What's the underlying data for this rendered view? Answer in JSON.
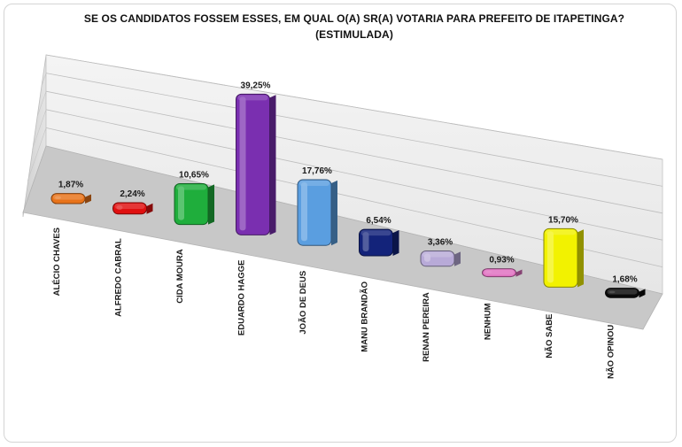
{
  "chart_data": {
    "type": "bar",
    "title": "SE OS CANDIDATOS FOSSEM ESSES, EM QUAL O(A) SR(A) VOTARIA PARA PREFEITO DE ITAPETINGA?",
    "subtitle": "(ESTIMULADA)",
    "categories": [
      "ALÉCIO CHAVES",
      "ALFREDO CABRAL",
      "CIDA MOURA",
      "EDUARDO HAGGE",
      "JOÃO DE DEUS",
      "MANU BRANDÃO",
      "RENAN PEREIRA",
      "NENHUM",
      "NÃO SABE",
      "NÃO OPINOU"
    ],
    "values": [
      1.87,
      2.24,
      10.65,
      39.25,
      17.76,
      6.54,
      3.36,
      0.93,
      15.7,
      1.68
    ],
    "value_labels": [
      "1,87%",
      "2,24%",
      "10,65%",
      "39,25%",
      "17,76%",
      "6,54%",
      "3,36%",
      "0,93%",
      "15,70%",
      "1,68%"
    ],
    "colors": [
      "#e8731a",
      "#e01010",
      "#1fae3c",
      "#7a2fb0",
      "#5a9ee0",
      "#13237a",
      "#b8aad8",
      "#e070c0",
      "#f2f200",
      "#0a0a0a"
    ],
    "ylim": [
      0,
      50
    ],
    "grid": true,
    "legend": "none",
    "style": "3d-perspective"
  }
}
